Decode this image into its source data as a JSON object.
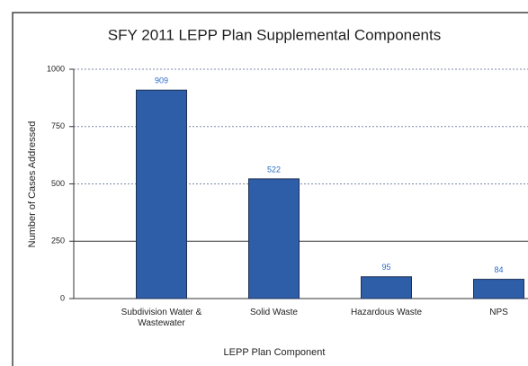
{
  "chart_data": {
    "type": "bar",
    "title": "SFY 2011 LEPP Plan Supplemental Components",
    "x_label": "LEPP Plan Component",
    "y_label": "Number of Cases Addressed",
    "categories": [
      "Subdivision Water & Wastewater",
      "Solid Waste",
      "Hazardous Waste",
      "NPS"
    ],
    "values": [
      909,
      522,
      95,
      84
    ],
    "color": "#2f5ea8",
    "ylim": [
      0,
      1000
    ],
    "yticks": [
      0,
      250,
      500,
      750,
      1000
    ],
    "grid": true
  }
}
